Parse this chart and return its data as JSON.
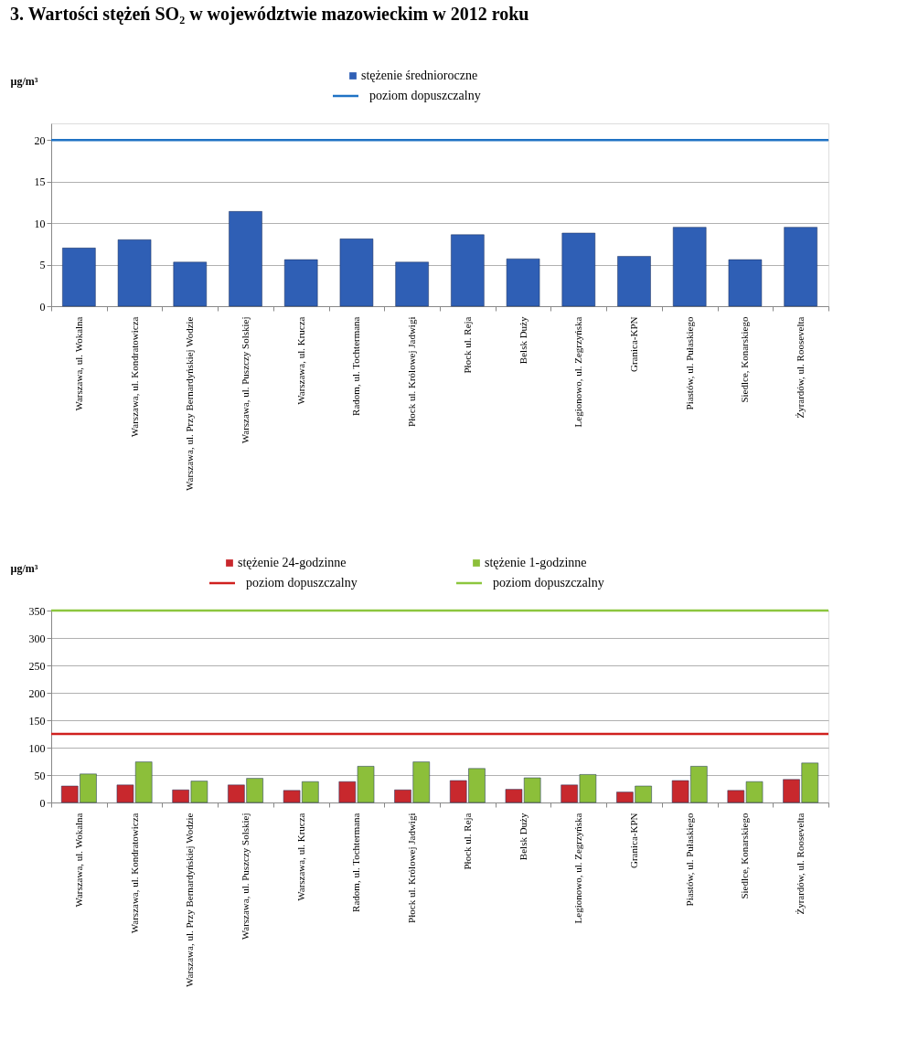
{
  "chart_data": [
    {
      "type": "bar",
      "title": "3. Wartości stężeń SO₂ w województwie mazowieckim w 2012 roku",
      "ylabel": "µg/m³",
      "categories": [
        "Warszawa, ul. Wokalna",
        "Warszawa, ul. Kondratowicza",
        "Warszawa, ul. Przy Bernardyńskiej Wodzie",
        "Warszawa, ul. Puszczy Solskiej",
        "Warszawa, ul. Krucza",
        "Radom, ul. Tochtermana",
        "Płock ul. Królowej Jadwigi",
        "Płock ul. Reja",
        "Belsk Duży",
        "Legionowo, ul. Zegrzyńska",
        "Granica-KPN",
        "Piastów, ul. Pułaskiego",
        "Siedlce, Konarskiego",
        "Żyrardów, ul. Roosevelta"
      ],
      "series": [
        {
          "name": "stężenie średnioroczne",
          "color": "#2f5fb5",
          "values": [
            7.0,
            8.0,
            5.3,
            11.4,
            5.6,
            8.1,
            5.3,
            8.6,
            5.7,
            8.8,
            6.0,
            9.5,
            5.6,
            9.5
          ]
        }
      ],
      "ref_lines": [
        {
          "axis": "y",
          "value": 20,
          "label": "poziom dopuszczalny",
          "color": "#1f72c4"
        }
      ],
      "ylim": [
        0,
        22
      ],
      "yticks": [
        0,
        5,
        10,
        15,
        20
      ],
      "grid": "y",
      "legend": "top"
    },
    {
      "type": "bar",
      "ylabel": "µg/m³",
      "categories": [
        "Warszawa, ul. Wokalna",
        "Warszawa, ul. Kondratowicza",
        "Warszawa, ul. Przy Bernardyńskiej Wodzie",
        "Warszawa, ul. Puszczy Solskiej",
        "Warszawa, ul. Krucza",
        "Radom, ul. Tochtermana",
        "Płock ul. Królowej Jadwigi",
        "Płock ul. Reja",
        "Belsk Duży",
        "Legionowo, ul. Zegrzyńska",
        "Granica-KPN",
        "Piastów, ul. Pułaskiego",
        "Siedlce, Konarskiego",
        "Żyrardów, ul. Roosevelta"
      ],
      "series": [
        {
          "name": "stężenie 24-godzinne",
          "color": "#c8282d",
          "values": [
            30,
            32,
            23,
            32,
            22,
            38,
            23,
            40,
            24,
            32,
            19,
            40,
            22,
            42
          ]
        },
        {
          "name": "stężenie 1-godzinne",
          "color": "#8cbf3a",
          "values": [
            52,
            74,
            39,
            44,
            38,
            66,
            74,
            62,
            45,
            51,
            30,
            66,
            38,
            72
          ]
        }
      ],
      "ref_lines": [
        {
          "axis": "y",
          "value": 125,
          "label": "poziom dopuszczalny",
          "color": "#d0201e"
        },
        {
          "axis": "y",
          "value": 350,
          "label": "poziom dopuszczalny",
          "color": "#8cc63e"
        }
      ],
      "ylim": [
        0,
        350
      ],
      "yticks": [
        0,
        50,
        100,
        150,
        200,
        250,
        300,
        350
      ],
      "grid": "y",
      "legend": "top"
    }
  ]
}
